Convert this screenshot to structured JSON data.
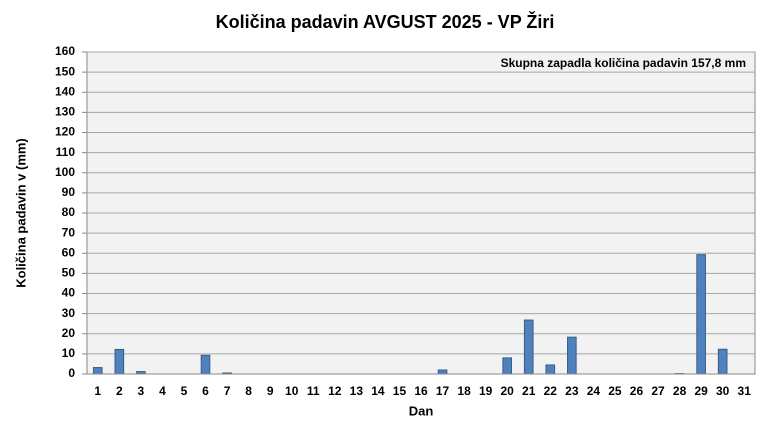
{
  "chart_data": {
    "type": "bar",
    "title": "Količina padavin AVGUST 2025 - VP Žiri",
    "annotation": "Skupna zapadla količina padavin 157,8 mm",
    "x_label": "Dan",
    "y_label": "Količina padavin v  (mm)",
    "categories": [
      "1",
      "2",
      "3",
      "4",
      "5",
      "6",
      "7",
      "8",
      "9",
      "10",
      "11",
      "12",
      "13",
      "14",
      "15",
      "16",
      "17",
      "18",
      "19",
      "20",
      "21",
      "22",
      "23",
      "24",
      "25",
      "26",
      "27",
      "28",
      "29",
      "30",
      "31"
    ],
    "values": [
      3.2,
      12.2,
      1.2,
      0,
      0,
      9.3,
      0.5,
      0,
      0,
      0,
      0,
      0,
      0,
      0,
      0,
      0,
      2,
      0,
      0,
      8,
      26.8,
      4.5,
      18.3,
      0,
      0,
      0,
      0,
      0.2,
      59.3,
      12.3,
      0
    ],
    "color": "#4f81bd",
    "ylim": [
      0,
      160
    ],
    "yticks": [
      0,
      10,
      20,
      30,
      40,
      50,
      60,
      70,
      80,
      90,
      100,
      110,
      120,
      130,
      140,
      150,
      160
    ],
    "grid": true
  }
}
